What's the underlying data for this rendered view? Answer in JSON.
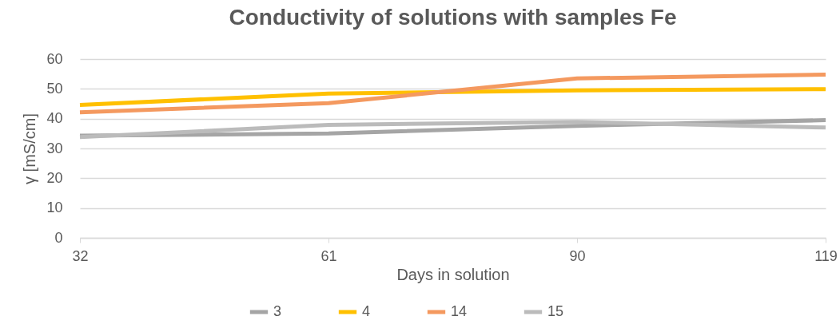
{
  "chart_data": {
    "type": "line",
    "title": "Conductivity of solutions with samples Fe",
    "xlabel": "Days in solution",
    "ylabel": "γ [mS/cm]",
    "categories": [
      "32",
      "61",
      "90",
      "119"
    ],
    "series": [
      {
        "name": "3",
        "color": "#a5a5a5",
        "values": [
          34.3,
          35.0,
          37.6,
          39.5
        ]
      },
      {
        "name": "4",
        "color": "#ffc000",
        "values": [
          44.6,
          48.4,
          49.5,
          49.9
        ]
      },
      {
        "name": "14",
        "color": "#f4995f",
        "values": [
          42.1,
          45.2,
          53.5,
          54.8
        ]
      },
      {
        "name": "15",
        "color": "#bbbbbb",
        "values": [
          33.8,
          37.9,
          38.9,
          37.0
        ]
      }
    ],
    "ylim": [
      0,
      60
    ],
    "yticks": [
      0,
      10,
      20,
      30,
      40,
      50,
      60
    ],
    "grid": "y",
    "legend": "bottom",
    "line_style": "solid"
  }
}
